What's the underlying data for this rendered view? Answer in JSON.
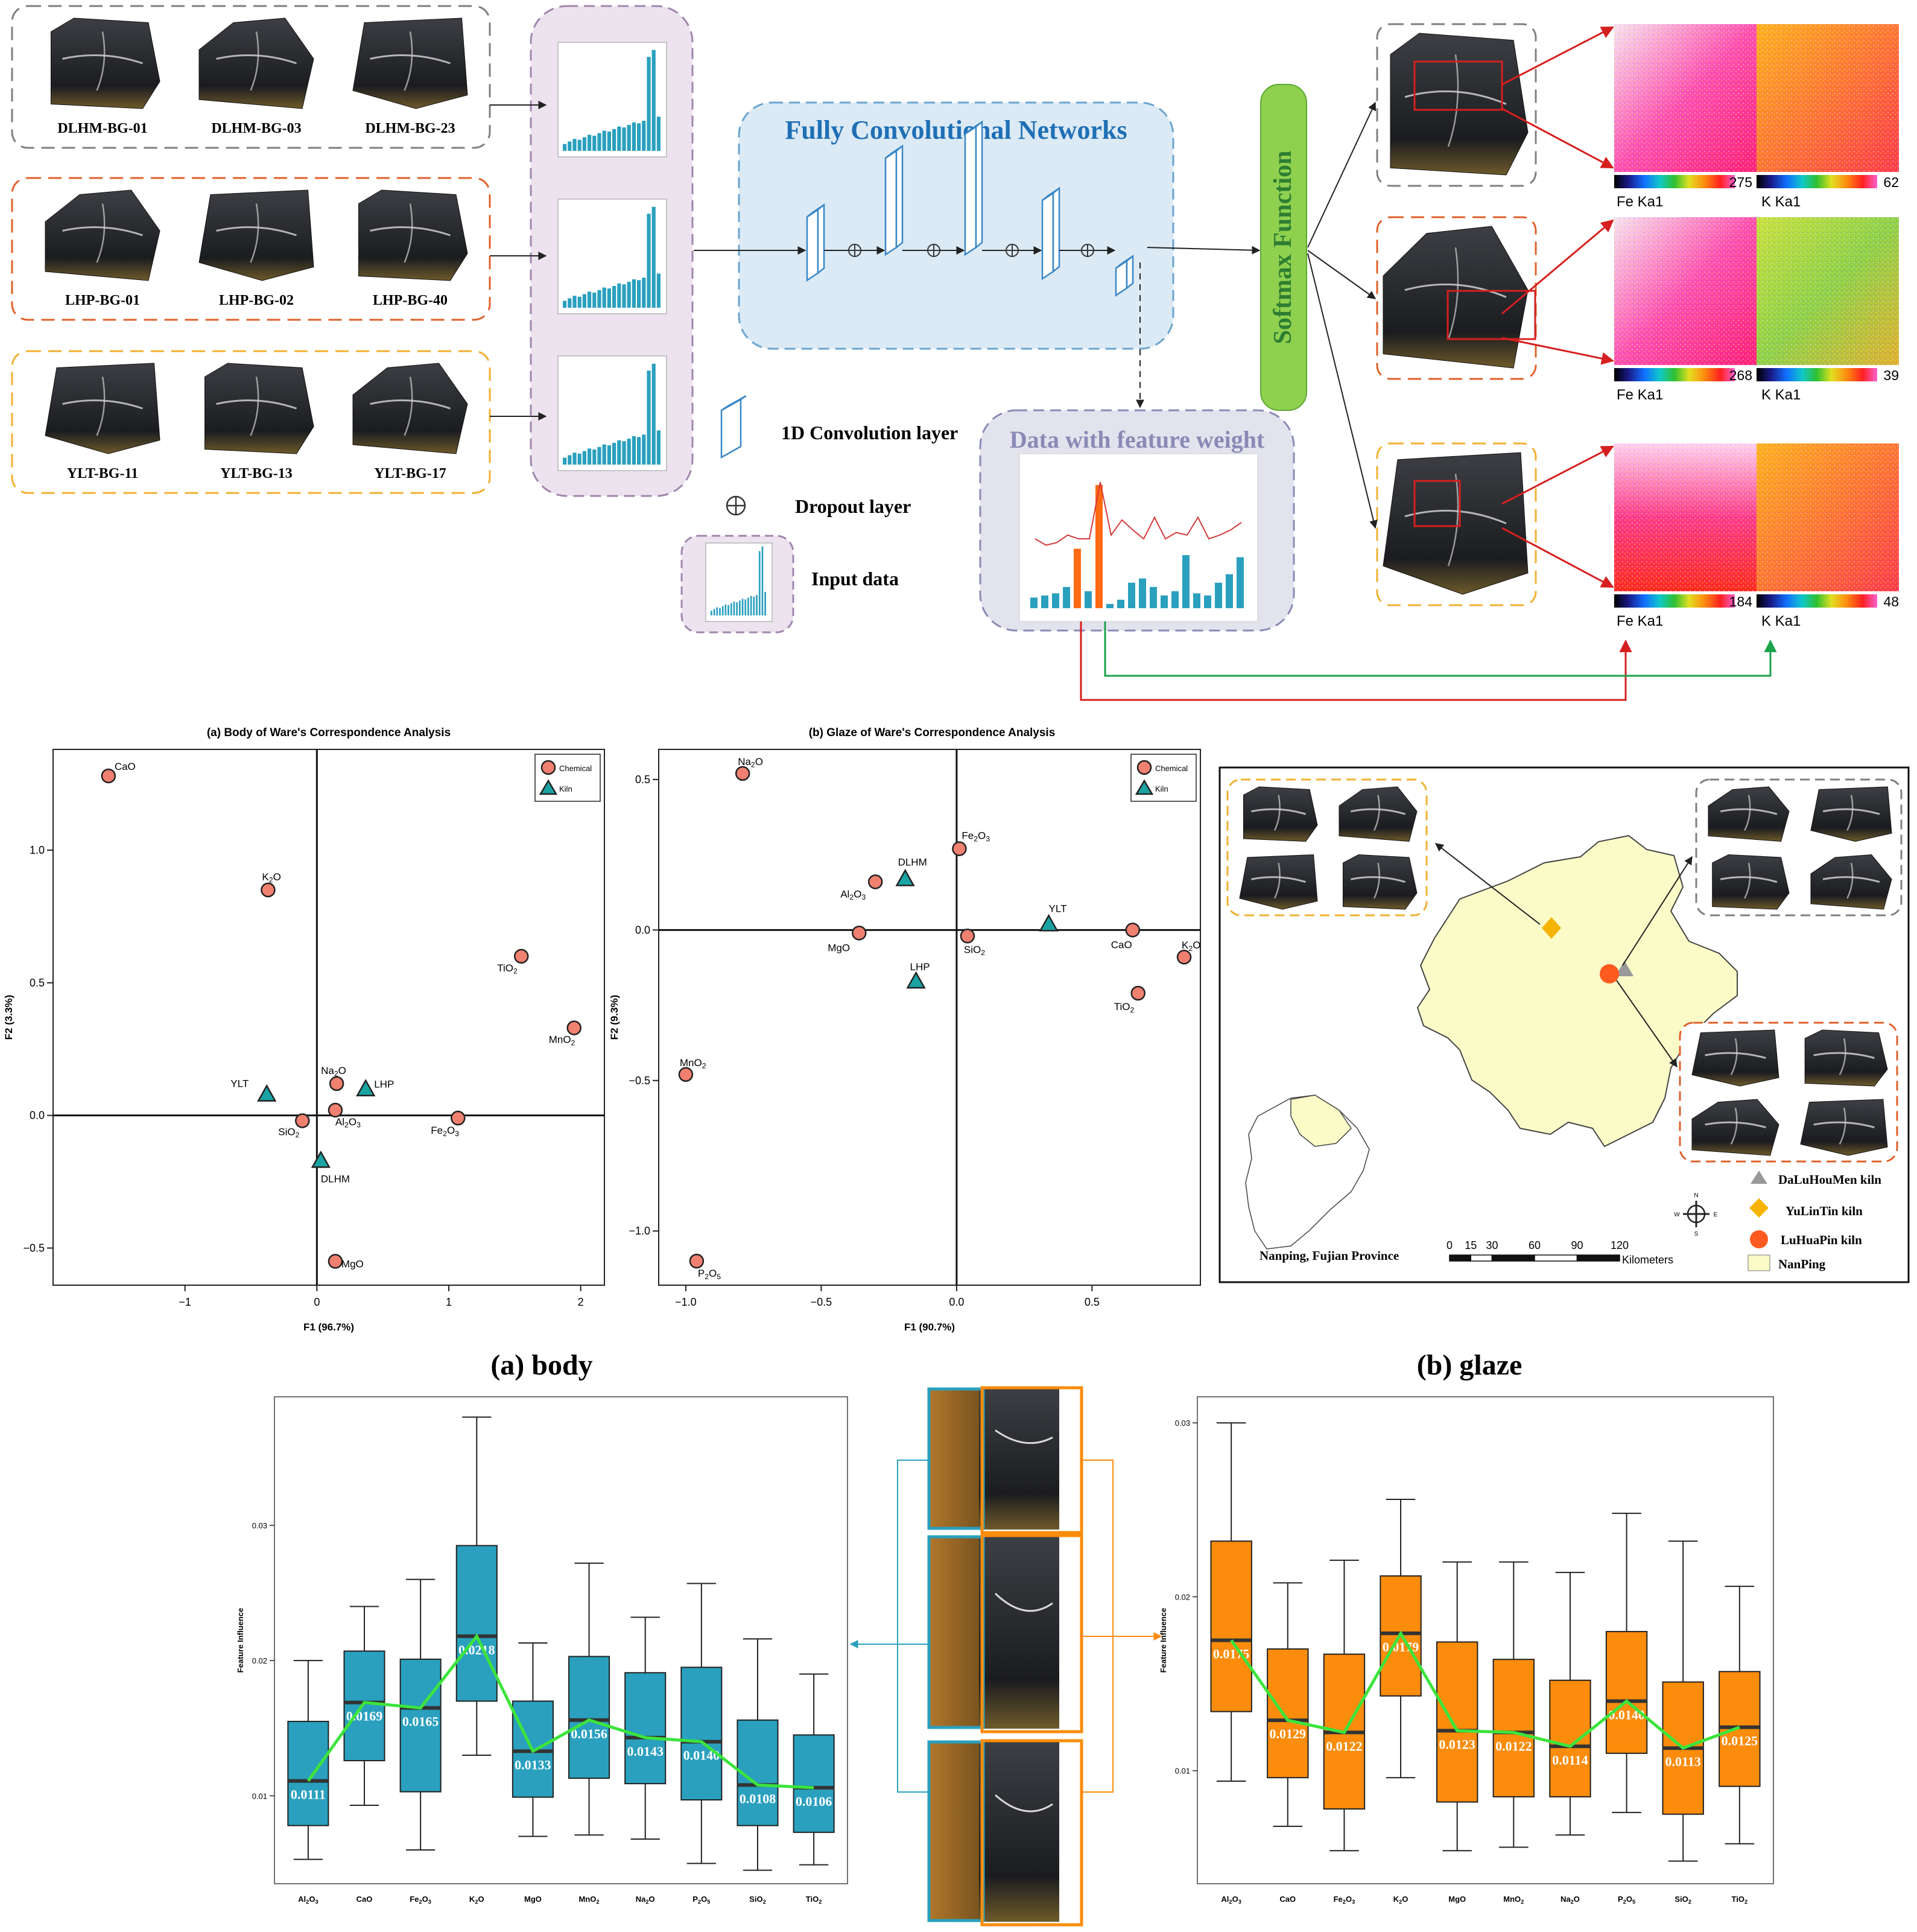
{
  "top": {
    "groups": [
      {
        "key": "DLHM",
        "color": "#7f7f7f",
        "labels": [
          "DLHM-BG-01",
          "DLHM-BG-03",
          "DLHM-BG-23"
        ]
      },
      {
        "key": "LHP",
        "color": "#e0602a",
        "labels": [
          "LHP-BG-01",
          "LHP-BG-02",
          "LHP-BG-40"
        ]
      },
      {
        "key": "YLT",
        "color": "#f0b030",
        "labels": [
          "YLT-BG-11",
          "YLT-BG-13",
          "YLT-BG-17"
        ]
      }
    ],
    "fcn_title": "Fully Convolutional Networks",
    "softmax_label": "Softmax Function",
    "legend": {
      "conv": "1D Convolution layer",
      "dropout": "Dropout layer",
      "input": "Input data"
    },
    "feature_title": "Data with feature  weight",
    "maps": [
      {
        "fe_max": "275",
        "k_max": "62",
        "fe_label": "Fe Ka1",
        "k_label": "K Ka1"
      },
      {
        "fe_max": "268",
        "k_max": "39",
        "fe_label": "Fe Ka1",
        "k_label": "K Ka1"
      },
      {
        "fe_max": "184",
        "k_max": "48",
        "fe_label": "Fe Ka1",
        "k_label": "K Ka1"
      }
    ],
    "colors": {
      "fcn_fill": "#dbeaf5",
      "fcn_border": "#6aa4cf",
      "fcn_title": "#1f6fb5",
      "input_fill": "#ece3ef",
      "input_border": "#a186ad",
      "softmax_fill": "#8fd14f",
      "softmax_text": "#2e7d32",
      "feature_fill": "#e3e3ee",
      "feature_title": "#8a8ab5",
      "bar": "#2aa0be",
      "bar_hi": "#ff6a13",
      "line": "#d43a3a"
    }
  },
  "chart_data": [
    {
      "type": "scatter",
      "title": "(a) Body of Ware's Correspondence Analysis",
      "xlabel": "F1 (96.7%)",
      "ylabel": "F2 (3.3%)",
      "xlim": [
        -2.0,
        2.18
      ],
      "ylim": [
        -0.64,
        1.38
      ],
      "xticks": [
        "-1",
        "0",
        "1",
        "2"
      ],
      "yticks": [
        "-0.5",
        "0.0",
        "0.5",
        "1.0"
      ],
      "grid": false,
      "legend": "top-right",
      "series": [
        {
          "name": "Chemical",
          "marker": "circle",
          "points": [
            {
              "label": "CaO",
              "x": -1.58,
              "y": 1.28
            },
            {
              "label": "K2O",
              "x": -0.37,
              "y": 0.85
            },
            {
              "label": "TiO2",
              "x": 1.55,
              "y": 0.6
            },
            {
              "label": "MnO2",
              "x": 1.95,
              "y": 0.33
            },
            {
              "label": "Na2O",
              "x": 0.15,
              "y": 0.12
            },
            {
              "label": "Al2O3",
              "x": 0.14,
              "y": 0.02
            },
            {
              "label": "SiO2",
              "x": -0.11,
              "y": -0.02
            },
            {
              "label": "Fe2O3",
              "x": 1.07,
              "y": -0.01
            },
            {
              "label": "MgO",
              "x": 0.14,
              "y": -0.55
            }
          ]
        },
        {
          "name": "Kiln",
          "marker": "triangle",
          "points": [
            {
              "label": "YLT",
              "x": -0.38,
              "y": 0.08
            },
            {
              "label": "LHP",
              "x": 0.37,
              "y": 0.1
            },
            {
              "label": "DLHM",
              "x": 0.03,
              "y": -0.17
            }
          ]
        }
      ]
    },
    {
      "type": "scatter",
      "title": "(b) Glaze of Ware's Correspondence Analysis",
      "xlabel": "F1 (90.7%)",
      "ylabel": "F2 (9.3%)",
      "xlim": [
        -1.1,
        0.9
      ],
      "ylim": [
        -1.18,
        0.6
      ],
      "xticks": [
        "-1.0",
        "-0.5",
        "0.0",
        "0.5"
      ],
      "yticks": [
        "-1.0",
        "-0.5",
        "0.0",
        "0.5"
      ],
      "grid": false,
      "legend": "top-right",
      "series": [
        {
          "name": "Chemical",
          "marker": "circle",
          "points": [
            {
              "label": "Na2O",
              "x": -0.79,
              "y": 0.52
            },
            {
              "label": "Fe2O3",
              "x": 0.01,
              "y": 0.27
            },
            {
              "label": "Al2O3",
              "x": -0.3,
              "y": 0.16
            },
            {
              "label": "MgO",
              "x": -0.36,
              "y": -0.01
            },
            {
              "label": "SiO2",
              "x": 0.04,
              "y": -0.02
            },
            {
              "label": "CaO",
              "x": 0.65,
              "y": 0.0
            },
            {
              "label": "K2O",
              "x": 0.84,
              "y": -0.09
            },
            {
              "label": "TiO2",
              "x": 0.67,
              "y": -0.21
            },
            {
              "label": "MnO2",
              "x": -1.0,
              "y": -0.48
            },
            {
              "label": "P2O5",
              "x": -0.96,
              "y": -1.1
            }
          ]
        },
        {
          "name": "Kiln",
          "marker": "triangle",
          "points": [
            {
              "label": "DLHM",
              "x": -0.19,
              "y": 0.17
            },
            {
              "label": "YLT",
              "x": 0.34,
              "y": 0.02
            },
            {
              "label": "LHP",
              "x": -0.15,
              "y": -0.17
            }
          ]
        }
      ]
    },
    {
      "type": "box",
      "title": "(a) body",
      "ylabel": "Feature Influence",
      "ylim": [
        0.0035,
        0.0395
      ],
      "yticks": [
        0.01,
        0.02,
        0.03
      ],
      "fill": "#2aa0be",
      "trend_color": "#3ce43c",
      "categories": [
        "Al2O3",
        "CaO",
        "Fe2O3",
        "K2O",
        "MgO",
        "MnO2",
        "Na2O",
        "P2O5",
        "SiO2",
        "TiO2"
      ],
      "boxes": [
        {
          "min": 0.0053,
          "q1": 0.0078,
          "median": 0.0111,
          "q3": 0.0155,
          "max": 0.02,
          "label": "0.0111"
        },
        {
          "min": 0.0093,
          "q1": 0.0126,
          "median": 0.0169,
          "q3": 0.0207,
          "max": 0.024,
          "label": "0.0169"
        },
        {
          "min": 0.006,
          "q1": 0.0103,
          "median": 0.0165,
          "q3": 0.0201,
          "max": 0.026,
          "label": "0.0165"
        },
        {
          "min": 0.013,
          "q1": 0.017,
          "median": 0.0218,
          "q3": 0.0285,
          "max": 0.038,
          "label": "0.0218"
        },
        {
          "min": 0.007,
          "q1": 0.0099,
          "median": 0.0133,
          "q3": 0.017,
          "max": 0.0213,
          "label": "0.0133"
        },
        {
          "min": 0.0071,
          "q1": 0.0113,
          "median": 0.0156,
          "q3": 0.0203,
          "max": 0.0272,
          "label": "0.0156"
        },
        {
          "min": 0.0068,
          "q1": 0.0109,
          "median": 0.0143,
          "q3": 0.0191,
          "max": 0.0232,
          "label": "0.0143"
        },
        {
          "min": 0.005,
          "q1": 0.0097,
          "median": 0.014,
          "q3": 0.0195,
          "max": 0.0257,
          "label": "0.0140"
        },
        {
          "min": 0.0045,
          "q1": 0.0078,
          "median": 0.0108,
          "q3": 0.0156,
          "max": 0.0216,
          "label": "0.0108"
        },
        {
          "min": 0.0049,
          "q1": 0.0073,
          "median": 0.0106,
          "q3": 0.0145,
          "max": 0.019,
          "label": "0.0106"
        }
      ]
    },
    {
      "type": "box",
      "title": "(b) glaze",
      "ylabel": "Feature Influence",
      "ylim": [
        0.0035,
        0.0315
      ],
      "yticks": [
        0.01,
        0.02,
        0.03
      ],
      "fill": "#fb8c0c",
      "trend_color": "#3ce43c",
      "categories": [
        "Al2O3",
        "CaO",
        "Fe2O3",
        "K2O",
        "MgO",
        "MnO2",
        "Na2O",
        "P2O5",
        "SiO2",
        "TiO2"
      ],
      "boxes": [
        {
          "min": 0.0094,
          "q1": 0.0134,
          "median": 0.0175,
          "q3": 0.0232,
          "max": 0.03,
          "label": "0.0175"
        },
        {
          "min": 0.0068,
          "q1": 0.0096,
          "median": 0.0129,
          "q3": 0.017,
          "max": 0.0208,
          "label": "0.0129"
        },
        {
          "min": 0.0054,
          "q1": 0.0078,
          "median": 0.0122,
          "q3": 0.0167,
          "max": 0.0221,
          "label": "0.0122"
        },
        {
          "min": 0.0096,
          "q1": 0.0143,
          "median": 0.0179,
          "q3": 0.0212,
          "max": 0.0256,
          "label": "0.0179"
        },
        {
          "min": 0.0054,
          "q1": 0.0082,
          "median": 0.0123,
          "q3": 0.0174,
          "max": 0.022,
          "label": "0.0123"
        },
        {
          "min": 0.0056,
          "q1": 0.0085,
          "median": 0.0122,
          "q3": 0.0164,
          "max": 0.022,
          "label": "0.0122"
        },
        {
          "min": 0.0063,
          "q1": 0.0085,
          "median": 0.0114,
          "q3": 0.0152,
          "max": 0.0214,
          "label": "0.0114"
        },
        {
          "min": 0.0076,
          "q1": 0.011,
          "median": 0.014,
          "q3": 0.018,
          "max": 0.0248,
          "label": "0.0140"
        },
        {
          "min": 0.0048,
          "q1": 0.0075,
          "median": 0.0113,
          "q3": 0.0151,
          "max": 0.0232,
          "label": "0.0113"
        },
        {
          "min": 0.0058,
          "q1": 0.0091,
          "median": 0.0125,
          "q3": 0.0157,
          "max": 0.0206,
          "label": "0.0125"
        }
      ]
    }
  ],
  "legend_ca": {
    "chemical": "Chemical",
    "kiln": "Kiln"
  },
  "map": {
    "kilns": [
      {
        "label": "DaLuHouMen kiln",
        "marker": "triangle",
        "color": "#999999"
      },
      {
        "label": "YuLinTin kiln",
        "marker": "diamond",
        "color": "#f6b400"
      },
      {
        "label": "LuHuaPin kiln",
        "marker": "circle",
        "color": "#ff5a1f"
      }
    ],
    "region_label": "NanPing",
    "region_color": "#fbfbc8",
    "caption": "Nanping, Fujian Province",
    "scale_ticks": [
      "0",
      "15",
      "30",
      "60",
      "90",
      "120"
    ],
    "scale_unit": "Kilometers",
    "compass": {
      "n": "N",
      "s": "S",
      "e": "E",
      "w": "W"
    }
  }
}
